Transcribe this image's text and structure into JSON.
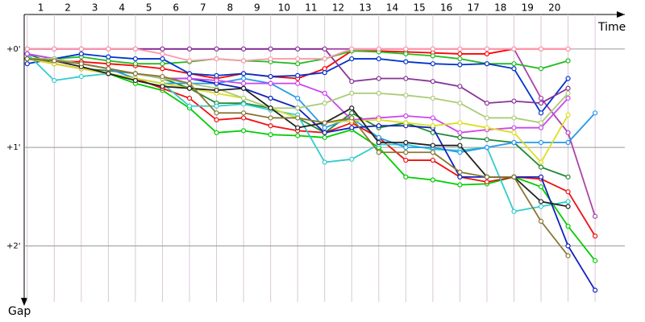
{
  "chart_data": {
    "type": "line",
    "x_label": "Time",
    "y_label": "Gap",
    "x": [
      0.5,
      1.5,
      2.5,
      3.5,
      4.5,
      5.5,
      6.5,
      7.5,
      8.5,
      9.5,
      10.5,
      11.5,
      12.5,
      13.5,
      14.5,
      15.5,
      16.5,
      17.5,
      18.5,
      19.5,
      20.5,
      21.5
    ],
    "xlim": [
      0,
      22.6
    ],
    "xticks": [
      1,
      2,
      3,
      4,
      5,
      6,
      7,
      8,
      9,
      10,
      11,
      12,
      13,
      14,
      15,
      16,
      17,
      18,
      19,
      20
    ],
    "ylim": [
      -0.35,
      2.65
    ],
    "y_inverted": true,
    "yticks": [
      {
        "value": 0,
        "label": "+0'"
      },
      {
        "value": 1,
        "label": "+1'"
      },
      {
        "value": 2,
        "label": "+2'"
      }
    ],
    "grid": true,
    "series": [
      {
        "color": "#ff0000",
        "values": [
          0.1,
          0.12,
          0.13,
          0.15,
          0.17,
          0.2,
          0.25,
          0.3,
          0.25,
          0.28,
          0.3,
          0.2,
          0.02,
          0.02,
          0.03,
          0.04,
          0.05,
          0.05,
          0,
          0,
          0,
          null
        ]
      },
      {
        "color": "#aa44aa",
        "values": [
          0,
          0,
          0,
          0,
          0,
          0,
          0,
          0,
          0,
          0,
          0,
          0,
          0,
          0,
          0,
          0,
          0,
          0,
          0,
          0.5,
          0.85,
          1.7
        ]
      },
      {
        "color": "#22bb22",
        "values": [
          0.05,
          0.1,
          0.08,
          0.12,
          0.15,
          0.15,
          0.13,
          0.1,
          0.12,
          0.13,
          0.15,
          0.1,
          0.02,
          0.03,
          0.05,
          0.07,
          0.1,
          0.15,
          0.15,
          0.2,
          0.12,
          null
        ]
      },
      {
        "color": "#0033cc",
        "values": [
          0.15,
          0.1,
          0.05,
          0.08,
          0.1,
          0.1,
          0.25,
          0.27,
          0.25,
          0.28,
          0.27,
          0.24,
          0.1,
          0.1,
          0.13,
          0.15,
          0.16,
          0.15,
          0.2,
          0.65,
          0.3,
          null
        ]
      },
      {
        "color": "#228833",
        "values": [
          0.05,
          0.15,
          0.2,
          0.22,
          0.25,
          0.3,
          0.4,
          0.55,
          0.55,
          0.6,
          0.7,
          0.85,
          0.65,
          0.8,
          0.75,
          0.85,
          0.9,
          0.92,
          0.95,
          1.2,
          1.3,
          null
        ]
      },
      {
        "color": "#00cc00",
        "values": [
          0.1,
          0.15,
          0.2,
          0.25,
          0.35,
          0.42,
          0.6,
          0.85,
          0.83,
          0.87,
          0.88,
          0.9,
          0.82,
          1.0,
          1.3,
          1.33,
          1.38,
          1.37,
          1.3,
          1.4,
          1.8,
          2.15
        ]
      },
      {
        "color": "#ee1111",
        "values": [
          0.1,
          0.15,
          0.2,
          0.25,
          0.3,
          0.4,
          0.5,
          0.72,
          0.7,
          0.78,
          0.83,
          0.85,
          0.75,
          0.9,
          1.13,
          1.13,
          1.3,
          1.35,
          1.3,
          1.32,
          1.45,
          1.9
        ]
      },
      {
        "color": "#33cccc",
        "values": [
          0.05,
          0.32,
          0.28,
          0.25,
          0.3,
          0.35,
          0.58,
          0.58,
          0.56,
          0.62,
          0.67,
          1.15,
          1.12,
          0.97,
          0.97,
          1.02,
          1.03,
          1.0,
          1.65,
          1.6,
          1.55,
          null
        ]
      },
      {
        "color": "#2299ee",
        "values": [
          0.05,
          0.1,
          0.15,
          0.2,
          0.3,
          0.35,
          0.35,
          0.35,
          0.3,
          0.35,
          0.5,
          0.8,
          0.7,
          0.9,
          1.0,
          1.0,
          1.05,
          1.0,
          0.95,
          0.95,
          0.95,
          0.65
        ]
      },
      {
        "color": "#1122bb",
        "values": [
          0.1,
          0.1,
          0.15,
          0.2,
          0.25,
          0.3,
          0.3,
          0.35,
          0.4,
          0.5,
          0.6,
          0.85,
          0.8,
          0.78,
          0.78,
          0.8,
          1.3,
          1.3,
          1.3,
          1.3,
          2.0,
          2.45
        ]
      },
      {
        "color": "#cc44ee",
        "values": [
          0.05,
          0.1,
          0.15,
          0.2,
          0.25,
          0.3,
          0.3,
          0.32,
          0.35,
          0.35,
          0.35,
          0.45,
          0.72,
          0.7,
          0.68,
          0.7,
          0.85,
          0.82,
          0.8,
          0.8,
          0.5,
          null
        ]
      },
      {
        "color": "#dddd22",
        "values": [
          0.1,
          0.15,
          0.2,
          0.25,
          0.3,
          0.35,
          0.4,
          0.45,
          0.5,
          0.6,
          0.7,
          0.75,
          0.73,
          0.72,
          0.75,
          0.78,
          0.75,
          0.8,
          0.85,
          1.15,
          0.67,
          null
        ]
      },
      {
        "color": "#aacc77",
        "values": [
          0.1,
          0.1,
          0.15,
          0.2,
          0.25,
          0.3,
          0.35,
          0.4,
          0.5,
          0.6,
          0.6,
          0.55,
          0.45,
          0.45,
          0.47,
          0.5,
          0.55,
          0.7,
          0.7,
          0.75,
          0.45,
          null
        ]
      },
      {
        "color": "#883399",
        "values": [
          0,
          0,
          0,
          0,
          0,
          0,
          0,
          0,
          0,
          0,
          0,
          0,
          0.33,
          0.3,
          0.3,
          0.33,
          0.38,
          0.55,
          0.53,
          0.55,
          0.4,
          null
        ]
      },
      {
        "color": "#222222",
        "values": [
          0.1,
          0.12,
          0.18,
          0.25,
          0.32,
          0.38,
          0.4,
          0.42,
          0.4,
          0.6,
          0.8,
          0.75,
          0.6,
          0.95,
          0.95,
          0.98,
          0.98,
          1.3,
          1.3,
          1.55,
          1.6,
          null
        ]
      },
      {
        "color": "#887733",
        "values": [
          0.1,
          0.12,
          0.15,
          0.2,
          0.25,
          0.28,
          0.35,
          0.65,
          0.65,
          0.7,
          0.7,
          0.75,
          0.7,
          1.05,
          1.05,
          1.05,
          1.25,
          1.3,
          1.3,
          1.75,
          2.1,
          null
        ]
      },
      {
        "color": "#ff99aa",
        "values": [
          0,
          0,
          0,
          0,
          0,
          0.05,
          0.12,
          0.1,
          0.12,
          0.1,
          0.1,
          0.1,
          0,
          0,
          0,
          0,
          0,
          0,
          0,
          0,
          0,
          null
        ]
      }
    ]
  }
}
